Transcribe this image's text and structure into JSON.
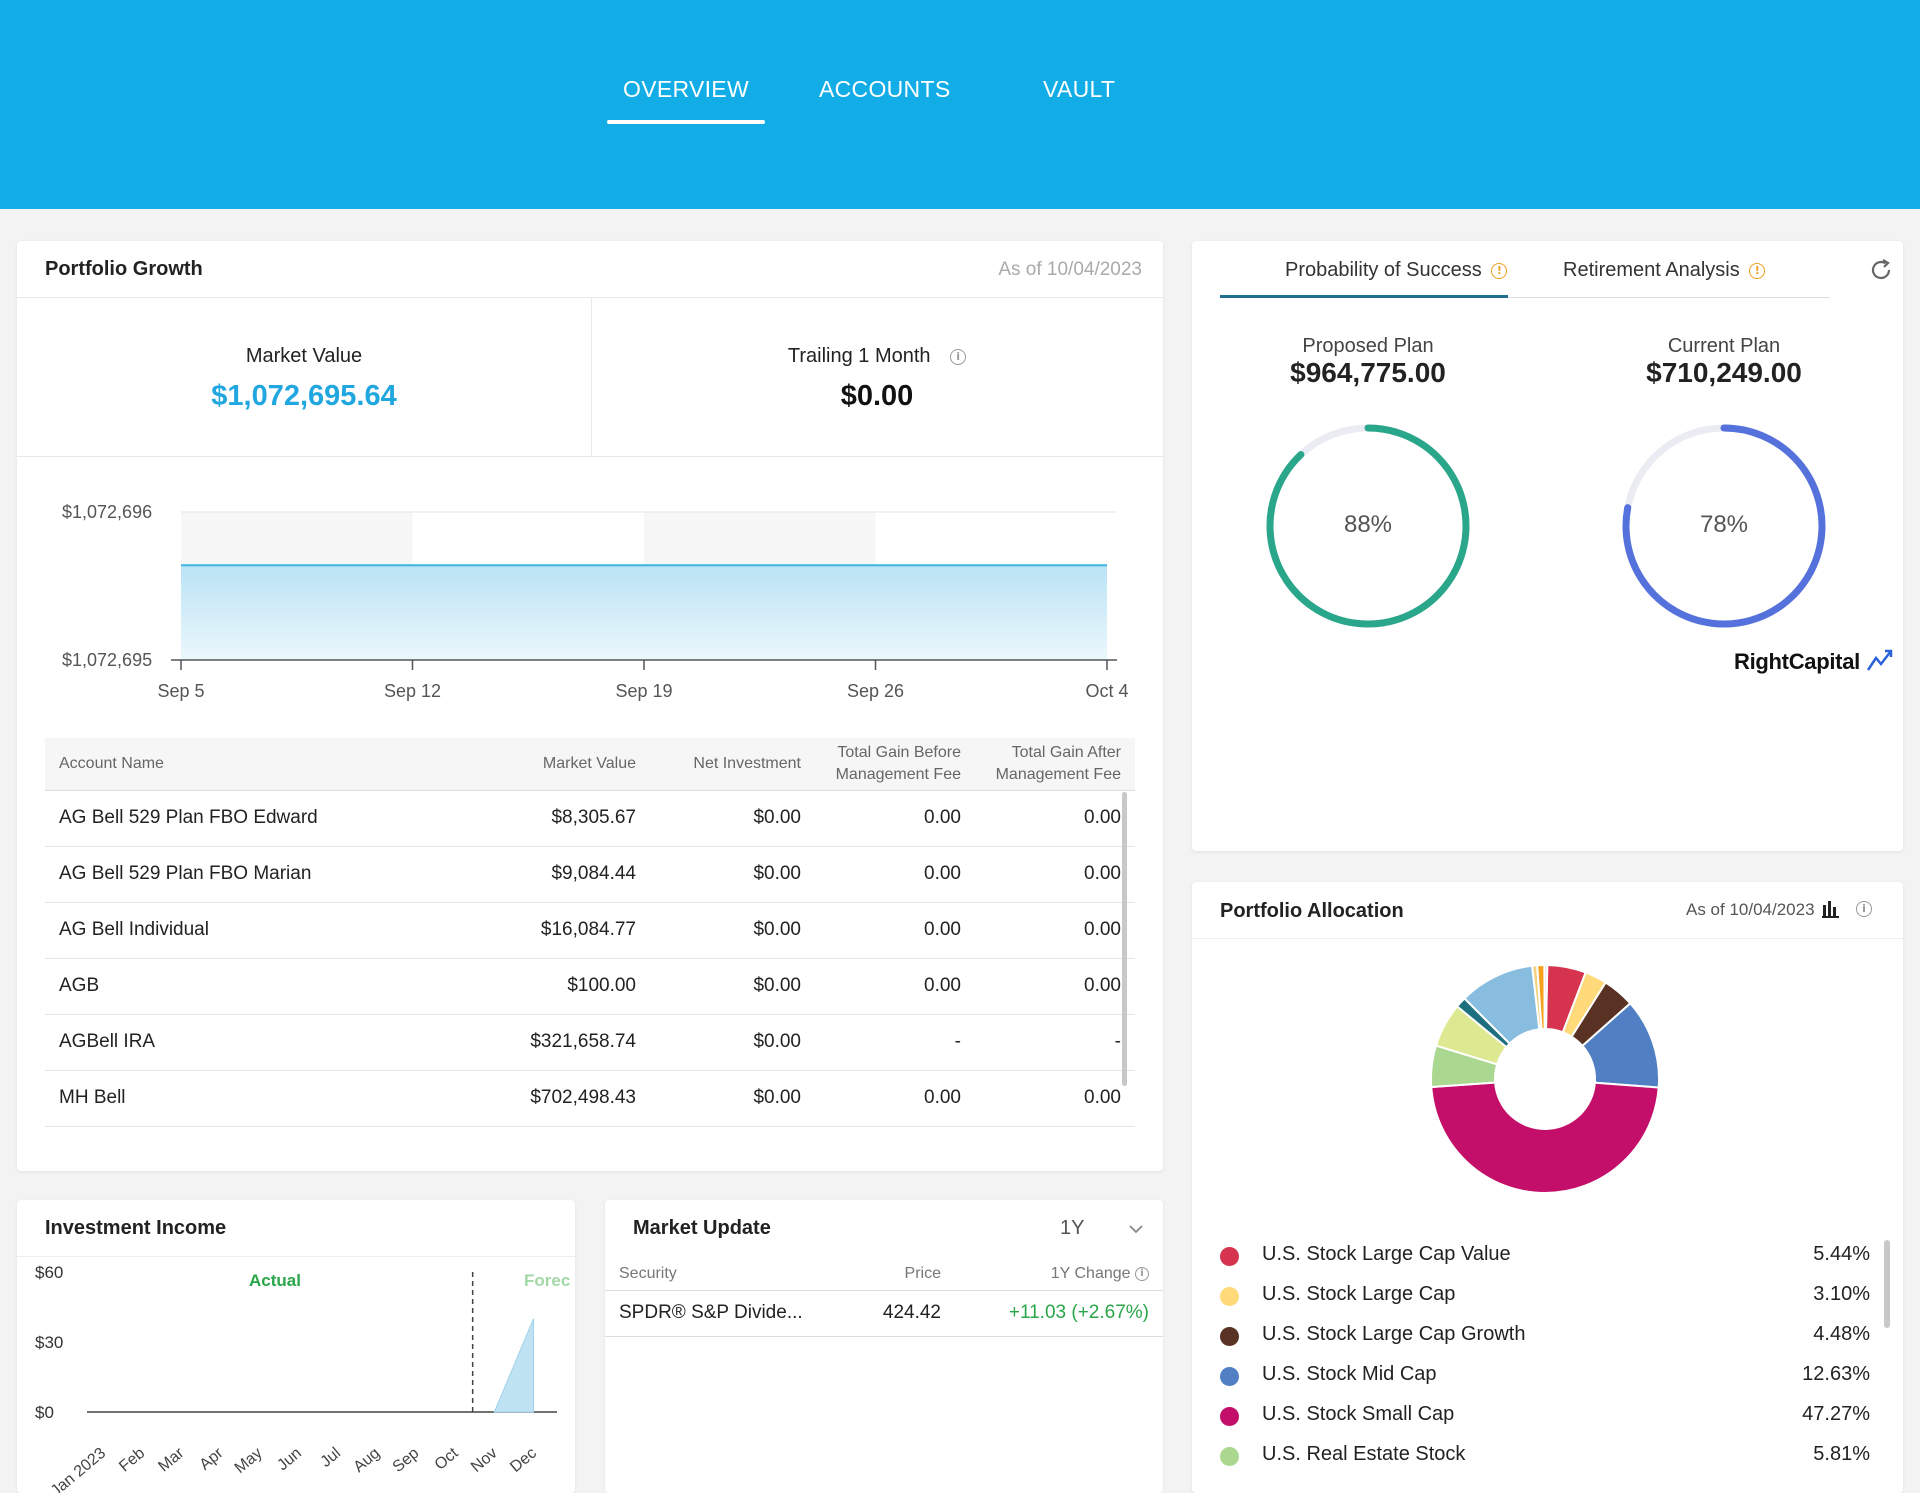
{
  "nav": {
    "tabs": [
      "OVERVIEW",
      "ACCOUNTS",
      "VAULT"
    ],
    "active": "OVERVIEW"
  },
  "portfolio_growth": {
    "title": "Portfolio Growth",
    "as_of": "As of 10/04/2023",
    "market_value_label": "Market Value",
    "market_value": "$1,072,695.64",
    "trailing_label": "Trailing 1 Month",
    "trailing_value": "$0.00",
    "chart_data": {
      "type": "area",
      "x": [
        "Sep 5",
        "Sep 12",
        "Sep 19",
        "Sep 26",
        "Oct 4"
      ],
      "values": [
        1072695.64,
        1072695.64,
        1072695.64,
        1072695.64,
        1072695.64
      ],
      "ylim": [
        1072695,
        1072696
      ],
      "ytick_labels": [
        "$1,072,696",
        "$1,072,695"
      ],
      "color": "#3bb5e0"
    },
    "table": {
      "headers": [
        "Account Name",
        "Market Value",
        "Net Investment",
        "Total Gain Before Management Fee",
        "Total Gain After Management Fee"
      ],
      "rows": [
        [
          "AG Bell 529 Plan FBO Edward",
          "$8,305.67",
          "$0.00",
          "0.00",
          "0.00"
        ],
        [
          "AG Bell 529 Plan FBO Marian",
          "$9,084.44",
          "$0.00",
          "0.00",
          "0.00"
        ],
        [
          "AG Bell Individual",
          "$16,084.77",
          "$0.00",
          "0.00",
          "0.00"
        ],
        [
          "AGB",
          "$100.00",
          "$0.00",
          "0.00",
          "0.00"
        ],
        [
          "AGBell IRA",
          "$321,658.74",
          "$0.00",
          "-",
          "-"
        ],
        [
          "MH Bell",
          "$702,498.43",
          "$0.00",
          "0.00",
          "0.00"
        ]
      ]
    }
  },
  "probability": {
    "tabs": [
      "Probability of Success",
      "Retirement Analysis"
    ],
    "proposed_label": "Proposed Plan",
    "proposed_value": "$964,775.00",
    "proposed_pct": 88,
    "proposed_pct_text": "88%",
    "current_label": "Current Plan",
    "current_value": "$710,249.00",
    "current_pct": 78,
    "current_pct_text": "78%",
    "proposed_color": "#2aa68a",
    "current_color": "#5572dc",
    "brand": "RightCapital"
  },
  "allocation": {
    "title": "Portfolio Allocation",
    "as_of": "As of 10/04/2023",
    "chart_data": {
      "type": "pie",
      "slices": [
        {
          "label": "U.S. Stock Large Cap Value",
          "value": 5.44,
          "color": "#d6334f"
        },
        {
          "label": "U.S. Stock Large Cap",
          "value": 3.1,
          "color": "#ffd97a"
        },
        {
          "label": "U.S. Stock Large Cap Growth",
          "value": 4.48,
          "color": "#5a3224"
        },
        {
          "label": "U.S. Stock Mid Cap",
          "value": 12.63,
          "color": "#507fc3"
        },
        {
          "label": "U.S. Stock Small Cap",
          "value": 47.27,
          "color": "#c40f6a"
        },
        {
          "label": "U.S. Real Estate Stock",
          "value": 5.81,
          "color": "#aad890"
        },
        {
          "label": "",
          "value": 6.2,
          "color": "#dde991"
        },
        {
          "label": "",
          "value": 1.5,
          "color": "#1e6f7d"
        },
        {
          "label": "",
          "value": 10.6,
          "color": "#88bde0"
        },
        {
          "label": "",
          "value": 0.7,
          "color": "#f2d27f"
        },
        {
          "label": "",
          "value": 1.0,
          "color": "#f5a21a"
        },
        {
          "label": "",
          "value": 0.4,
          "color": "#e0e0e0"
        }
      ]
    },
    "legend": [
      {
        "label": "U.S. Stock Large Cap Value",
        "pct": "5.44%",
        "color": "#d6334f"
      },
      {
        "label": "U.S. Stock Large Cap",
        "pct": "3.10%",
        "color": "#ffd97a"
      },
      {
        "label": "U.S. Stock Large Cap Growth",
        "pct": "4.48%",
        "color": "#5a3224"
      },
      {
        "label": "U.S. Stock Mid Cap",
        "pct": "12.63%",
        "color": "#507fc3"
      },
      {
        "label": "U.S. Stock Small Cap",
        "pct": "47.27%",
        "color": "#c40f6a"
      },
      {
        "label": "U.S. Real Estate Stock",
        "pct": "5.81%",
        "color": "#aad890"
      }
    ]
  },
  "income": {
    "title": "Investment Income",
    "actual_label": "Actual",
    "forecast_label": "Forec",
    "chart_data": {
      "type": "area",
      "x": [
        "Jan 2023",
        "Feb",
        "Mar",
        "Apr",
        "May",
        "Jun",
        "Jul",
        "Aug",
        "Sep",
        "Oct",
        "Nov",
        "Dec"
      ],
      "values": [
        0,
        0,
        0,
        0,
        0,
        0,
        0,
        0,
        0,
        0,
        0,
        40
      ],
      "ylim": [
        0,
        60
      ],
      "ytick_labels": [
        "$60",
        "$30",
        "$0"
      ]
    }
  },
  "market": {
    "title": "Market Update",
    "period": "1Y",
    "headers": [
      "Security",
      "Price",
      "1Y Change"
    ],
    "rows": [
      [
        "SPDR® S&P Divide...",
        "424.42",
        "+11.03 (+2.67%)"
      ]
    ]
  }
}
